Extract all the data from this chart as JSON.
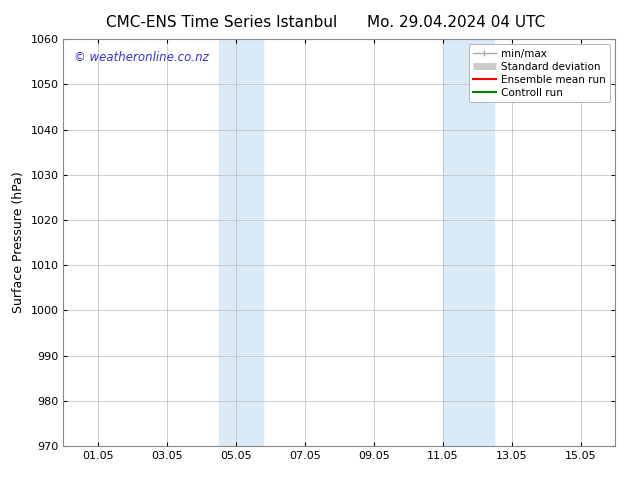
{
  "title_left": "CMC-ENS Time Series Istanbul",
  "title_right": "Mo. 29.04.2024 04 UTC",
  "ylabel": "Surface Pressure (hPa)",
  "xlim": [
    0,
    16
  ],
  "ylim": [
    970,
    1060
  ],
  "yticks": [
    970,
    980,
    990,
    1000,
    1010,
    1020,
    1030,
    1040,
    1050,
    1060
  ],
  "xtick_labels": [
    "01.05",
    "03.05",
    "05.05",
    "07.05",
    "09.05",
    "11.05",
    "13.05",
    "15.05"
  ],
  "xtick_positions": [
    1,
    3,
    5,
    7,
    9,
    11,
    13,
    15
  ],
  "shaded_regions": [
    {
      "x_start": 4.5,
      "x_end": 5.8
    },
    {
      "x_start": 11.0,
      "x_end": 12.5
    }
  ],
  "shaded_color": "#daeaf7",
  "watermark_text": "© weatheronline.co.nz",
  "watermark_color": "#3333cc",
  "watermark_fontsize": 8.5,
  "legend_items": [
    {
      "label": "min/max",
      "color": "#aaaaaa",
      "lw": 1.0,
      "linestyle": "-",
      "style": "minmax"
    },
    {
      "label": "Standard deviation",
      "color": "#cccccc",
      "lw": 5,
      "linestyle": "-",
      "style": "band"
    },
    {
      "label": "Ensemble mean run",
      "color": "#ff0000",
      "lw": 1.5,
      "linestyle": "-",
      "style": "line"
    },
    {
      "label": "Controll run",
      "color": "#008000",
      "lw": 1.5,
      "linestyle": "-",
      "style": "line"
    }
  ],
  "bg_color": "#ffffff",
  "grid_color": "#bbbbbb",
  "title_fontsize": 11,
  "axis_fontsize": 8,
  "ylabel_fontsize": 9,
  "legend_fontsize": 7.5
}
